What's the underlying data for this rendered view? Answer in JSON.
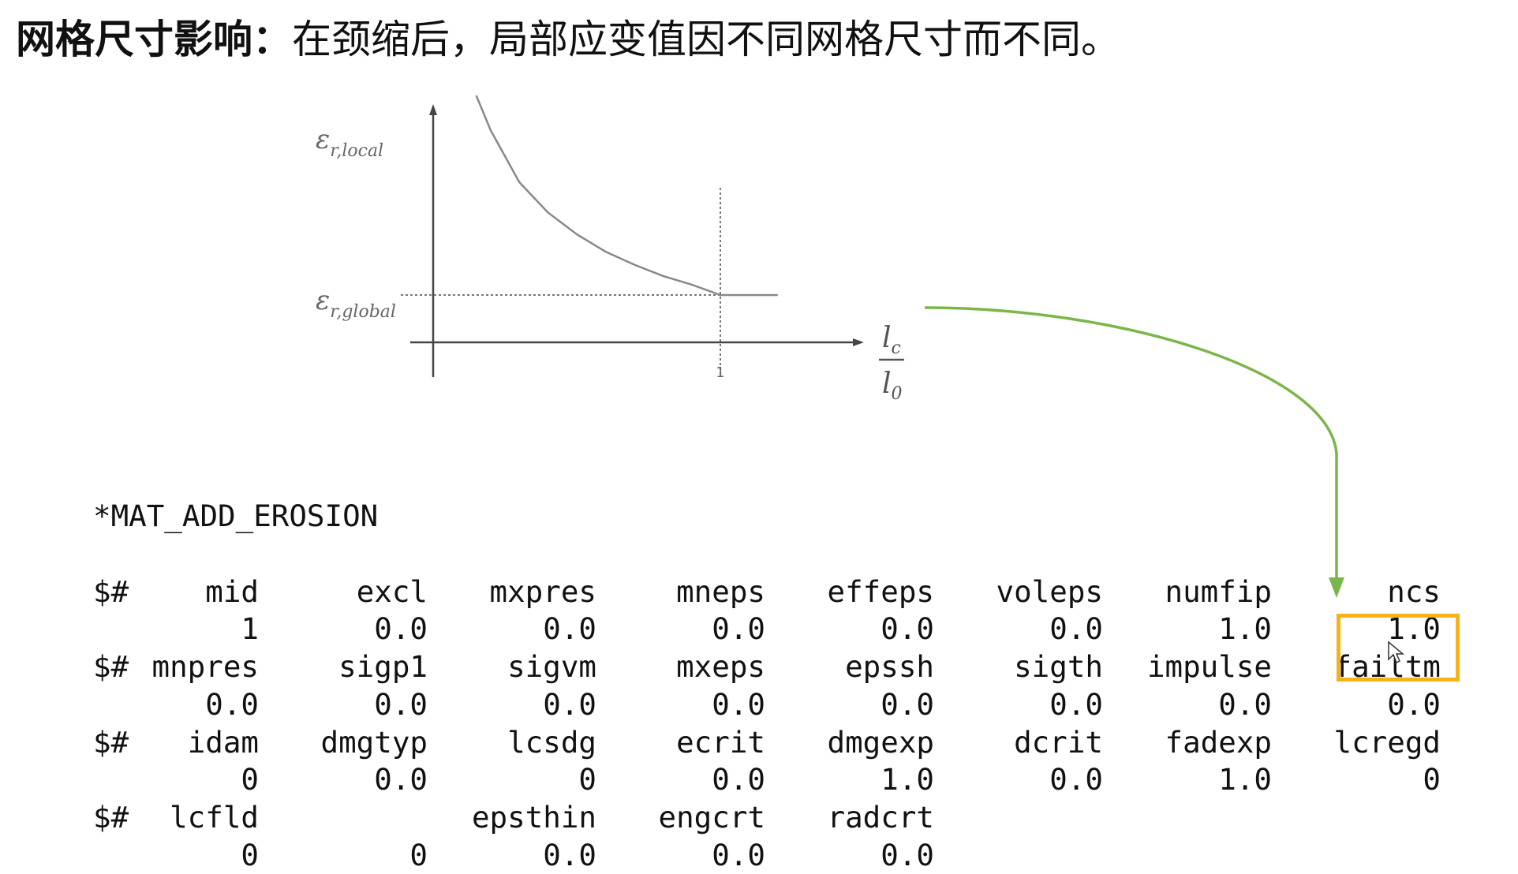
{
  "title": {
    "bold_part": "网格尺寸影响：",
    "rest": "在颈缩后，局部应变值因不同网格尺寸而不同。"
  },
  "chart_data": {
    "type": "line",
    "x_axis_label": "lc/l0",
    "x_label_num": "l",
    "x_label_num_sub": "c",
    "x_label_den": "l",
    "x_label_den_sub": "0",
    "y_labels": [
      {
        "main": "ε",
        "sub": "r,local"
      },
      {
        "main": "ε",
        "sub": "r,global"
      }
    ],
    "x_tick": "1",
    "series": [
      {
        "x": [
          0.15,
          0.2,
          0.3,
          0.4,
          0.5,
          0.6,
          0.7,
          0.8,
          0.9,
          1.0,
          1.2
        ],
        "y": [
          3.3,
          2.9,
          2.3,
          1.95,
          1.7,
          1.5,
          1.35,
          1.22,
          1.12,
          1.0,
          1.0
        ]
      }
    ],
    "hline": {
      "y": 1.0,
      "style": "dashed"
    },
    "vline": {
      "x": 1.0
    }
  },
  "code": {
    "header": "*MAT_ADD_EROSION",
    "blocks": [
      {
        "prefix": "$#",
        "names": [
          "mid",
          "excl",
          "mxpres",
          "mneps",
          "effeps",
          "voleps",
          "numfip",
          "ncs"
        ],
        "values": [
          "1",
          "0.0",
          "0.0",
          "0.0",
          "0.0",
          "0.0",
          "1.0",
          "1.0"
        ]
      },
      {
        "prefix": "$#",
        "names": [
          "mnpres",
          "sigp1",
          "sigvm",
          "mxeps",
          "epssh",
          "sigth",
          "impulse",
          "failtm"
        ],
        "values": [
          "0.0",
          "0.0",
          "0.0",
          "0.0",
          "0.0",
          "0.0",
          "0.0",
          "0.0"
        ]
      },
      {
        "prefix": "$#",
        "names": [
          "idam",
          "dmgtyp",
          "lcsdg",
          "ecrit",
          "dmgexp",
          "dcrit",
          "fadexp",
          "lcregd"
        ],
        "values": [
          "0",
          "0.0",
          "0",
          "0.0",
          "1.0",
          "0.0",
          "1.0",
          "0"
        ]
      },
      {
        "prefix": "$#",
        "names": [
          "lcfld",
          "",
          "epsthin",
          "engcrt",
          "radcrt",
          "",
          "",
          ""
        ],
        "values": [
          "0",
          "0",
          "0.0",
          "0.0",
          "0.0",
          "",
          "",
          ""
        ]
      }
    ]
  },
  "highlight": {
    "target": "lcregd",
    "color": "#f5b21a"
  },
  "arrow": {
    "color": "#7ab648"
  }
}
